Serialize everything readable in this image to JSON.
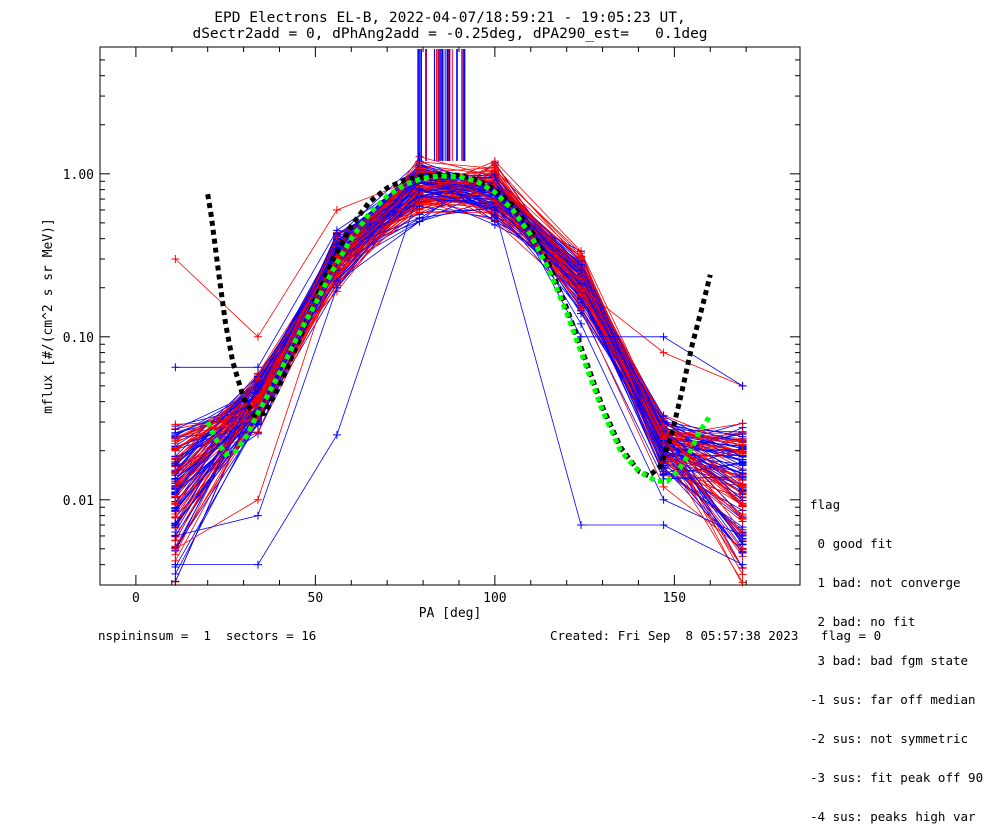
{
  "chart_data": {
    "type": "line",
    "title": "EPD Electrons EL-B, 2022-04-07/18:59:21 - 19:05:23 UT,",
    "subtitle": "dSectr2add = 0, dPhAng2add = -0.25deg, dPA290_est=   0.1deg",
    "xlabel": "PA [deg]",
    "ylabel": "mflux [#/(cm^2 s sr MeV)]",
    "xlim": [
      -10,
      185
    ],
    "ylim": [
      0.003,
      6.0
    ],
    "yscale": "log",
    "x_ticks": [
      "0",
      "50",
      "100",
      "150"
    ],
    "y_ticks": [
      "0.01",
      "0.10",
      "1.00"
    ],
    "series": [
      {
        "color": "#ff0000",
        "x": [
          11,
          34,
          56,
          79,
          100,
          124,
          147,
          169
        ],
        "y": [
          0.005,
          0.01,
          0.3,
          0.9,
          0.85,
          0.15,
          0.012,
          0.005
        ]
      },
      {
        "color": "#ff0000",
        "x": [
          11,
          34,
          56,
          79,
          100,
          124,
          147,
          169
        ],
        "y": [
          0.3,
          0.1,
          0.6,
          0.95,
          0.9,
          0.2,
          0.08,
          0.05
        ]
      },
      {
        "color": "#0000ff",
        "x": [
          11,
          34,
          56,
          79,
          100,
          124,
          147,
          169
        ],
        "y": [
          0.006,
          0.008,
          0.2,
          0.92,
          0.95,
          0.12,
          0.01,
          0.006
        ]
      },
      {
        "color": "#0000ff",
        "x": [
          11,
          34,
          56,
          79,
          100,
          124,
          147,
          169
        ],
        "y": [
          0.065,
          0.065,
          0.45,
          0.98,
          0.98,
          0.1,
          0.1,
          0.05
        ]
      },
      {
        "color": "#0000ff",
        "x": [
          11,
          34,
          56,
          79,
          100,
          124,
          147,
          169
        ],
        "y": [
          0.004,
          0.004,
          0.025,
          0.8,
          0.6,
          0.007,
          0.007,
          0.004
        ]
      }
    ],
    "fits": [
      {
        "color": "#000000",
        "style": "dashed",
        "x": [
          20,
          21,
          23,
          25,
          27,
          30,
          33,
          36,
          40,
          45,
          50,
          55,
          60,
          65,
          70,
          75,
          80,
          85,
          90,
          95,
          100,
          105,
          110,
          115,
          120,
          125,
          130,
          135,
          140,
          143,
          146,
          149,
          152,
          155,
          158,
          160
        ],
        "y": [
          0.75,
          0.55,
          0.25,
          0.12,
          0.07,
          0.042,
          0.033,
          0.034,
          0.05,
          0.09,
          0.17,
          0.3,
          0.48,
          0.67,
          0.82,
          0.92,
          0.97,
          0.99,
          0.98,
          0.92,
          0.8,
          0.64,
          0.45,
          0.28,
          0.15,
          0.075,
          0.037,
          0.021,
          0.015,
          0.014,
          0.016,
          0.024,
          0.045,
          0.09,
          0.16,
          0.24
        ]
      },
      {
        "color": "#00ff00",
        "style": "dashed",
        "x": [
          20,
          22,
          25,
          28,
          31,
          34,
          37,
          40,
          45,
          50,
          55,
          60,
          65,
          70,
          75,
          80,
          85,
          90,
          95,
          100,
          105,
          110,
          115,
          120,
          125,
          130,
          135,
          140,
          145,
          148,
          151,
          154,
          157,
          160
        ],
        "y": [
          0.03,
          0.024,
          0.019,
          0.02,
          0.025,
          0.034,
          0.045,
          0.06,
          0.1,
          0.16,
          0.26,
          0.4,
          0.57,
          0.73,
          0.86,
          0.94,
          0.97,
          0.96,
          0.9,
          0.77,
          0.6,
          0.42,
          0.26,
          0.14,
          0.07,
          0.035,
          0.02,
          0.015,
          0.013,
          0.013,
          0.015,
          0.019,
          0.026,
          0.033
        ]
      }
    ],
    "legend_title": "flag",
    "legend": [
      " 0 good fit",
      " 1 bad: not converge",
      " 2 bad: no fit",
      " 3 bad: bad fgm state",
      "-1 sus: far off median",
      "-2 sus: not symmetric",
      "-3 sus: fit peak off 90",
      "-4 sus: peaks high var"
    ],
    "footer_left": "nspininsum =  1  sectors = 16",
    "footer_right": "Created: Fri Sep  8 05:57:38 2023   flag = 0"
  }
}
